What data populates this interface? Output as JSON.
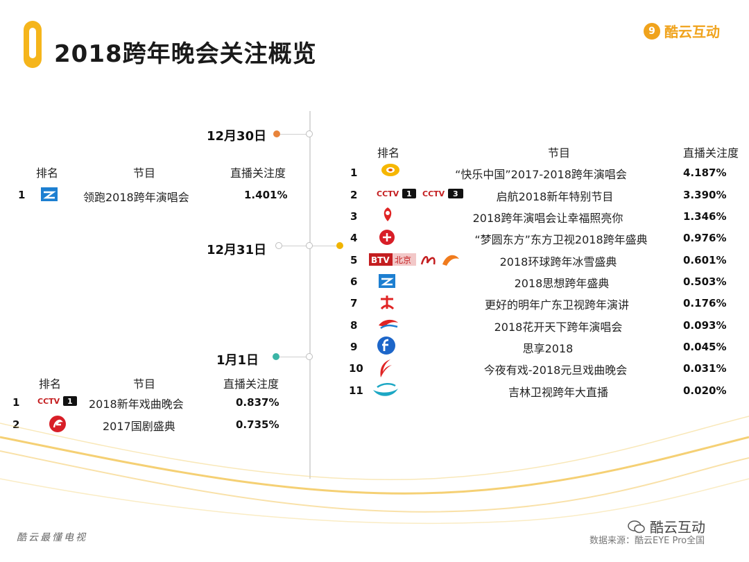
{
  "title": "2018跨年晚会关注概览",
  "brand": {
    "name": "酷云互动",
    "logo_glyph": "9"
  },
  "footer": {
    "left": "酷云最懂电视",
    "source": "数据来源：酷云EYE Pro全国",
    "wechat_name": "酷云互动"
  },
  "headers": {
    "rank": "排名",
    "program": "节目",
    "attention": "直播关注度"
  },
  "colors": {
    "accent": "#f5b51b",
    "dec30": "#e8843b",
    "dec31": "#f0b400",
    "jan1": "#3bb5a6",
    "brand": "#f0a31c"
  },
  "dec30": {
    "date": "12月30日",
    "rows": [
      {
        "rank": "1",
        "program": "领跑2018跨年演唱会",
        "attention": "1.401%",
        "logo": "zhejiang-tv-logo"
      }
    ]
  },
  "dec31": {
    "date": "12月31日",
    "rows": [
      {
        "rank": "1",
        "program": "“快乐中国”2017-2018跨年演唱会",
        "attention": "4.187%",
        "logo": "hunan-tv-logo"
      },
      {
        "rank": "2",
        "program": "启航2018新年特别节目",
        "attention": "3.390%",
        "logo": "cctv1-cctv3-logo"
      },
      {
        "rank": "3",
        "program": "2018跨年演唱会让幸福照亮你",
        "attention": "1.346%",
        "logo": "jiangsu-tv-logo"
      },
      {
        "rank": "4",
        "program": "“梦圆东方”东方卫视2018跨年盛典",
        "attention": "0.976%",
        "logo": "dragon-tv-logo"
      },
      {
        "rank": "5",
        "program": "2018环球跨年冰雪盛典",
        "attention": "0.601%",
        "logo": "btv-logo"
      },
      {
        "rank": "6",
        "program": "2018思想跨年盛典",
        "attention": "0.503%",
        "logo": "zhejiang-tv-logo"
      },
      {
        "rank": "7",
        "program": "更好的明年广东卫视跨年演讲",
        "attention": "0.176%",
        "logo": "guangdong-tv-logo"
      },
      {
        "rank": "8",
        "program": "2018花开天下跨年演唱会",
        "attention": "0.093%",
        "logo": "shenzhen-tv-logo"
      },
      {
        "rank": "9",
        "program": "思享2018",
        "attention": "0.045%",
        "logo": "fujian-tv-logo"
      },
      {
        "rank": "10",
        "program": "今夜有戏-2018元旦戏曲晚会",
        "attention": "0.031%",
        "logo": "cctv11-logo"
      },
      {
        "rank": "11",
        "program": "吉林卫视跨年大直播",
        "attention": "0.020%",
        "logo": "jilin-tv-logo"
      }
    ]
  },
  "jan1": {
    "date": "1月1日",
    "rows": [
      {
        "rank": "1",
        "program": "2018新年戏曲晚会",
        "attention": "0.837%",
        "logo": "cctv1-logo"
      },
      {
        "rank": "2",
        "program": "2017国剧盛典",
        "attention": "0.735%",
        "logo": "anhui-tv-logo"
      }
    ]
  },
  "logo_text": {
    "cctv": "CCTV",
    "cctv_1": "1",
    "cctv_3": "3",
    "btv": "BTV",
    "btv_beijing": "北京"
  }
}
